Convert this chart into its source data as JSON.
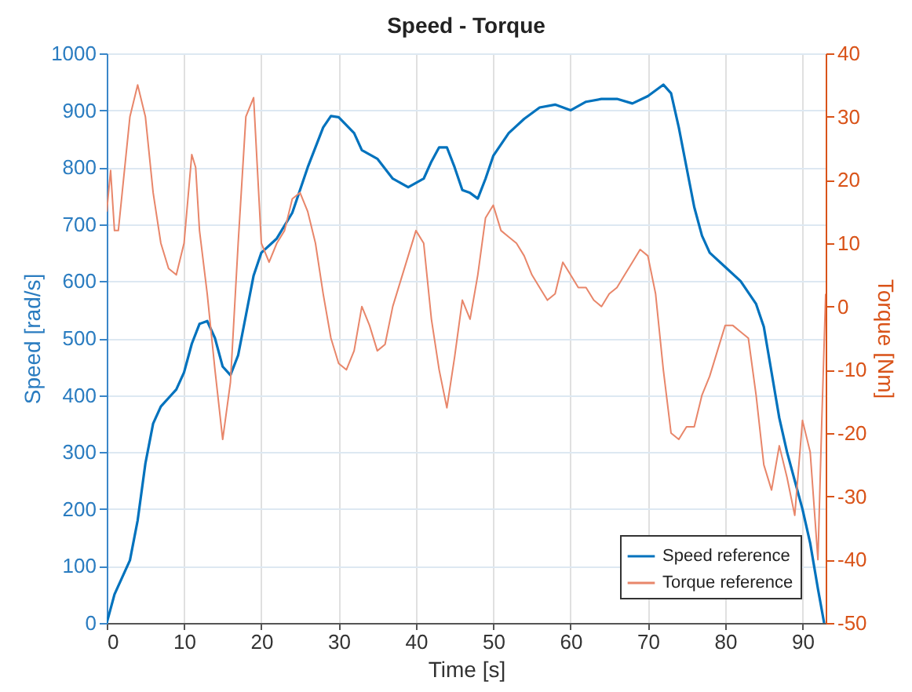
{
  "chart_data": {
    "type": "line",
    "title": "Speed - Torque",
    "xlabel": "Time [s]",
    "ylabel": "Speed [rad/s]",
    "y2label": "Torque [Nm]",
    "xlim": [
      0,
      93
    ],
    "xticks": [
      0,
      10,
      20,
      30,
      40,
      50,
      60,
      70,
      80,
      90
    ],
    "ylim": [
      0,
      1000
    ],
    "yticks": [
      0,
      100,
      200,
      300,
      400,
      500,
      600,
      700,
      800,
      900,
      1000
    ],
    "y2lim": [
      -50,
      40
    ],
    "y2ticks": [
      -50,
      -40,
      -30,
      -20,
      -10,
      0,
      10,
      20,
      30,
      40
    ],
    "grid": true,
    "legend": "bottom right",
    "series": [
      {
        "name": "Speed reference",
        "color": "#0072bd",
        "x": [
          0,
          1,
          2,
          3,
          4,
          5,
          6,
          7,
          8,
          9,
          10,
          11,
          12,
          13,
          14,
          15,
          16,
          17,
          18,
          19,
          20,
          22,
          24,
          26,
          28,
          29,
          30,
          32,
          33,
          35,
          37,
          39,
          41,
          42,
          43,
          44,
          45,
          46,
          47,
          48,
          49,
          50,
          52,
          54,
          56,
          58,
          60,
          62,
          64,
          66,
          68,
          70,
          72,
          73,
          74,
          75,
          76,
          77,
          78,
          80,
          82,
          84,
          85,
          86,
          87,
          88,
          89,
          90,
          91,
          92,
          92.8
        ],
        "values": [
          0,
          50,
          80,
          110,
          180,
          280,
          350,
          380,
          395,
          410,
          440,
          490,
          525,
          530,
          500,
          450,
          435,
          470,
          540,
          610,
          650,
          675,
          720,
          800,
          870,
          890,
          888,
          860,
          830,
          815,
          780,
          765,
          780,
          810,
          835,
          835,
          800,
          760,
          755,
          745,
          780,
          820,
          860,
          885,
          905,
          910,
          900,
          915,
          920,
          920,
          912,
          925,
          945,
          930,
          870,
          800,
          730,
          680,
          650,
          625,
          600,
          560,
          520,
          440,
          360,
          300,
          250,
          200,
          140,
          60,
          0
        ]
      },
      {
        "name": "Torque reference",
        "color": "#e8866a",
        "axis": "y2",
        "x": [
          0,
          0.5,
          1,
          1.5,
          2,
          3,
          4,
          5,
          6,
          7,
          8,
          9,
          10,
          11,
          11.5,
          12,
          13,
          14,
          15,
          16,
          17,
          18,
          19,
          20,
          21,
          22,
          23,
          24,
          25,
          26,
          27,
          28,
          29,
          30,
          31,
          32,
          33,
          34,
          35,
          36,
          37,
          38,
          39,
          40,
          41,
          42,
          43,
          44,
          45,
          46,
          47,
          48,
          49,
          50,
          51,
          52,
          53,
          54,
          55,
          56,
          57,
          58,
          59,
          60,
          61,
          62,
          63,
          64,
          65,
          66,
          67,
          68,
          69,
          70,
          71,
          72,
          73,
          74,
          75,
          76,
          77,
          78,
          79,
          80,
          81,
          82,
          83,
          84,
          85,
          86,
          87,
          88,
          89,
          90,
          91,
          92,
          92.5,
          93
        ],
        "values": [
          15,
          21.5,
          12,
          12,
          18,
          30,
          35,
          30,
          18,
          10,
          6,
          5,
          10,
          24,
          22,
          12,
          2,
          -10,
          -21,
          -12,
          10,
          30,
          33,
          10,
          7,
          10,
          12,
          17,
          18,
          15,
          10,
          2,
          -5,
          -9,
          -10,
          -7,
          0,
          -3,
          -7,
          -6,
          0,
          4,
          8,
          12,
          10,
          -2,
          -10,
          -16,
          -8,
          1,
          -2,
          5,
          14,
          16,
          12,
          11,
          10,
          8,
          5,
          3,
          1,
          2,
          7,
          5,
          3,
          3,
          1,
          0,
          2,
          3,
          5,
          7,
          9,
          8,
          2,
          -10,
          -20,
          -21,
          -19,
          -19,
          -14,
          -11,
          -7,
          -3,
          -3,
          -4,
          -5,
          -14,
          -25,
          -29,
          -22,
          -27,
          -33,
          -18,
          -23,
          -40,
          -18,
          2
        ]
      }
    ]
  }
}
